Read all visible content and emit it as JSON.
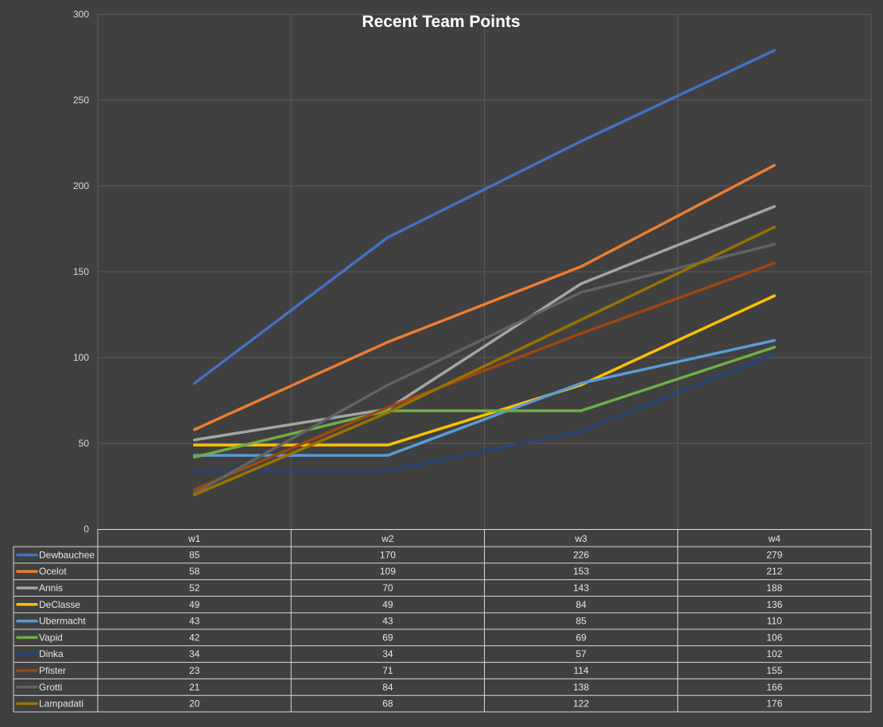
{
  "chart_data": {
    "type": "line",
    "title": "Recent Team Points",
    "categories": [
      "w1",
      "w2",
      "w3",
      "w4"
    ],
    "ylim": [
      0,
      300
    ],
    "yticks": [
      0,
      50,
      100,
      150,
      200,
      250,
      300
    ],
    "grid": true,
    "legend": "data table",
    "series": [
      {
        "name": "Dewbauchee",
        "color": "#4472c4",
        "values": [
          85,
          170,
          226,
          279
        ]
      },
      {
        "name": "Ocelot",
        "color": "#ed7d31",
        "values": [
          58,
          109,
          153,
          212
        ]
      },
      {
        "name": "Annis",
        "color": "#a5a5a5",
        "values": [
          52,
          70,
          143,
          188
        ]
      },
      {
        "name": "DeClasse",
        "color": "#ffc000",
        "values": [
          49,
          49,
          84,
          136
        ]
      },
      {
        "name": "Ubermacht",
        "color": "#5b9bd5",
        "values": [
          43,
          43,
          85,
          110
        ]
      },
      {
        "name": "Vapid",
        "color": "#70ad47",
        "values": [
          42,
          69,
          69,
          106
        ]
      },
      {
        "name": "Dinka",
        "color": "#264478",
        "values": [
          34,
          34,
          57,
          102
        ]
      },
      {
        "name": "Pfister",
        "color": "#9e480e",
        "values": [
          23,
          71,
          114,
          155
        ]
      },
      {
        "name": "Grotti",
        "color": "#636363",
        "values": [
          21,
          84,
          138,
          166
        ]
      },
      {
        "name": "Lampadati",
        "color": "#997300",
        "values": [
          20,
          68,
          122,
          176
        ]
      }
    ]
  }
}
